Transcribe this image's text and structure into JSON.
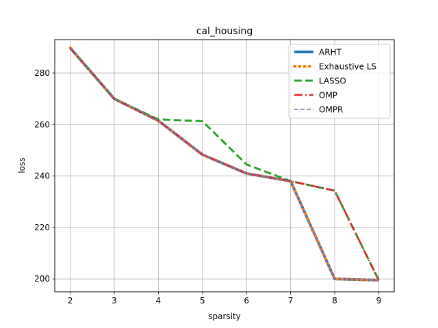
{
  "chart_data": {
    "type": "line",
    "title": "cal_housing",
    "xlabel": "sparsity",
    "ylabel": "loss",
    "x": [
      2,
      3,
      4,
      5,
      6,
      7,
      8,
      9
    ],
    "xlim": [
      1.65,
      9.35
    ],
    "ylim": [
      195,
      293
    ],
    "xticks": [
      2,
      3,
      4,
      5,
      6,
      7,
      8,
      9
    ],
    "yticks": [
      200,
      220,
      240,
      260,
      280
    ],
    "grid": true,
    "legend_position": "top-right",
    "series": [
      {
        "name": "ARHT",
        "color": "#1f77b4",
        "style": "solid",
        "width": 4,
        "values": [
          289.8,
          270.0,
          261.5,
          248.3,
          241.0,
          238.0,
          200.0,
          199.5
        ]
      },
      {
        "name": "Exhaustive LS",
        "color": "#ff7f0e",
        "style": "dotted",
        "width": 4,
        "values": [
          289.8,
          270.0,
          261.5,
          248.3,
          241.0,
          238.0,
          200.0,
          199.5
        ]
      },
      {
        "name": "LASSO",
        "color": "#2ca02c",
        "style": "dashed",
        "width": 3,
        "values": [
          289.8,
          270.0,
          262.0,
          261.3,
          244.5,
          238.0,
          234.3,
          199.5
        ]
      },
      {
        "name": "OMP",
        "color": "#d62728",
        "style": "dashdot",
        "width": 2.5,
        "values": [
          289.8,
          270.0,
          261.5,
          248.3,
          241.0,
          238.0,
          234.3,
          199.5
        ]
      },
      {
        "name": "OMPR",
        "color": "#9467bd",
        "style": "dashed-thin",
        "width": 1.5,
        "values": [
          289.8,
          270.0,
          261.5,
          248.3,
          241.0,
          238.0,
          200.0,
          199.5
        ]
      }
    ]
  }
}
